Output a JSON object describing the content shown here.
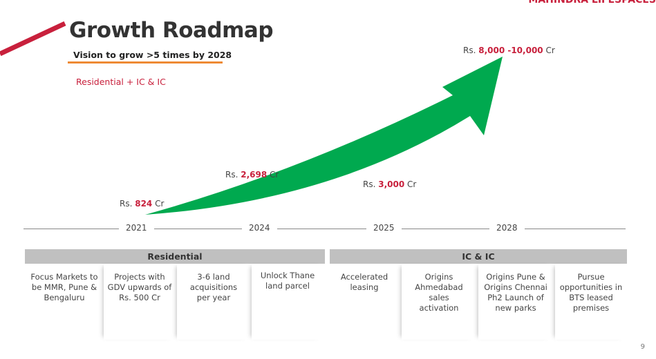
{
  "header": {
    "title": "Growth Roadmap",
    "subtitle": "Vision to grow >5 times by 2028",
    "segment": "Residential + IC & IC",
    "logo_text": "MAHINDRA LIFESPACES"
  },
  "milestones": [
    {
      "prefix": "Rs. ",
      "value": "824",
      "suffix": " Cr"
    },
    {
      "prefix": "Rs. ",
      "value": "2,698",
      "suffix": " Cr"
    },
    {
      "prefix": "Rs. ",
      "value": "3,000",
      "suffix": " Cr"
    },
    {
      "prefix": "Rs. ",
      "value": "8,000 -10,000",
      "suffix": " Cr"
    }
  ],
  "years": [
    "2021",
    "2024",
    "2025",
    "2028"
  ],
  "residential": {
    "title": "Residential",
    "items": [
      "Focus Markets to be MMR, Pune & Bengaluru",
      "Projects with GDV upwards of Rs. 500 Cr",
      "3-6 land acquisitions per year",
      "Unlock Thane land parcel"
    ]
  },
  "icic": {
    "title": "IC & IC",
    "items": [
      "Accelerated leasing",
      "Origins Ahmedabad sales activation",
      "Origins Pune & Origins Chennai Ph2 Launch of new parks",
      "Pursue opportunities in BTS leased premises"
    ]
  },
  "page_number": "9",
  "colors": {
    "accent": "#c8203c",
    "arrow": "#00a94f",
    "underline": "#ee8a34"
  }
}
